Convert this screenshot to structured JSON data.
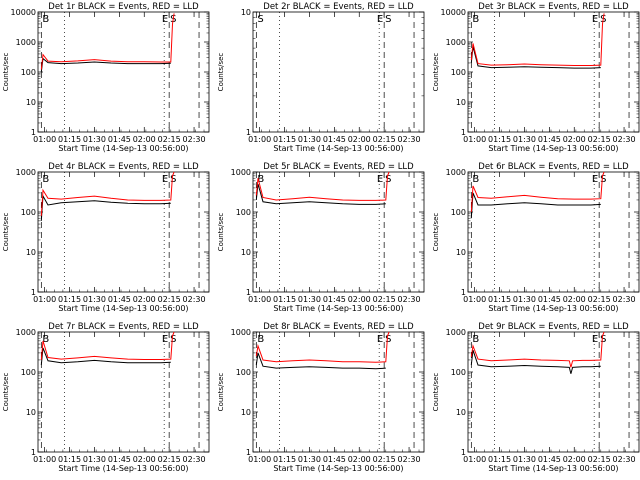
{
  "figure": {
    "x_title": "Start Time (14-Sep-13 00:56:00)",
    "y_title": "Counts/sec",
    "x_ticks": [
      "01:00",
      "01:15",
      "01:30",
      "01:45",
      "02:00",
      "02:15",
      "02:30"
    ],
    "colors": {
      "events": "#000000",
      "lld": "#ff0000",
      "axes": "#000000",
      "background": "#ffffff"
    }
  },
  "chart_data": [
    {
      "type": "line",
      "title": "Det 1r BLACK = Events, RED = LLD",
      "xlabel": "Start Time (14-Sep-13 00:56:00)",
      "ylabel": "Counts/sec",
      "ylog": true,
      "ylim": [
        1,
        10000
      ],
      "y_ticks": [
        "1",
        "10",
        "100",
        "1000",
        "10000"
      ],
      "xlim": [
        "00:56",
        "02:39"
      ],
      "x_ticks": [
        "01:00",
        "01:15",
        "01:30",
        "01:45",
        "02:00",
        "02:15",
        "02:30"
      ],
      "markers": [
        "B",
        "E",
        "S"
      ],
      "series": [
        {
          "name": "Events",
          "color": "#000000",
          "x": [
            "00:58",
            "00:59",
            "01:02",
            "01:10",
            "01:20",
            "01:30",
            "01:40",
            "01:50",
            "02:00",
            "02:10",
            "02:16"
          ],
          "values": [
            100,
            280,
            205,
            190,
            200,
            215,
            200,
            190,
            190,
            190,
            195
          ]
        },
        {
          "name": "LLD",
          "color": "#ff0000",
          "x": [
            "00:58",
            "00:59",
            "01:02",
            "01:10",
            "01:20",
            "01:30",
            "01:40",
            "01:50",
            "02:00",
            "02:10",
            "02:16",
            "02:17",
            "02:18"
          ],
          "values": [
            120,
            380,
            230,
            220,
            235,
            260,
            230,
            220,
            220,
            215,
            215,
            4000,
            9000
          ]
        }
      ]
    },
    {
      "type": "line",
      "title": "Det 2r BLACK = Events, RED = LLD",
      "xlabel": "Start Time (14-Sep-13 00:56:00)",
      "ylabel": "Counts/sec",
      "ylog": true,
      "ylim": [
        1,
        10
      ],
      "y_ticks": [
        "1",
        "10"
      ],
      "xlim": [
        "00:56",
        "02:39"
      ],
      "x_ticks": [
        "01:00",
        "01:15",
        "01:30",
        "01:45",
        "02:00",
        "02:15",
        "02:30"
      ],
      "markers": [
        "S",
        "E",
        "S"
      ],
      "series": []
    },
    {
      "type": "line",
      "title": "Det 3r BLACK = Events, RED = LLD",
      "xlabel": "Start Time (14-Sep-13 00:56:00)",
      "ylabel": "Counts/sec",
      "ylog": true,
      "ylim": [
        1,
        10000
      ],
      "y_ticks": [
        "1",
        "10",
        "100",
        "1000",
        "10000"
      ],
      "xlim": [
        "00:56",
        "02:39"
      ],
      "x_ticks": [
        "01:00",
        "01:15",
        "01:30",
        "01:45",
        "02:00",
        "02:15",
        "02:30"
      ],
      "markers": [
        "B",
        "E",
        "S"
      ],
      "series": [
        {
          "name": "Events",
          "color": "#000000",
          "x": [
            "00:58",
            "00:59",
            "01:02",
            "01:10",
            "01:20",
            "01:30",
            "01:40",
            "01:50",
            "02:00",
            "02:10",
            "02:16"
          ],
          "values": [
            200,
            700,
            160,
            140,
            145,
            150,
            145,
            140,
            135,
            135,
            140
          ]
        },
        {
          "name": "LLD",
          "color": "#ff0000",
          "x": [
            "00:58",
            "00:59",
            "01:02",
            "01:10",
            "01:20",
            "01:30",
            "01:40",
            "01:50",
            "02:00",
            "02:10",
            "02:16",
            "02:17",
            "02:18"
          ],
          "values": [
            250,
            900,
            190,
            170,
            175,
            185,
            175,
            170,
            165,
            165,
            170,
            4000,
            9000
          ]
        }
      ]
    },
    {
      "type": "line",
      "title": "Det 4r BLACK = Events, RED = LLD",
      "xlabel": "Start Time (14-Sep-13 00:56:00)",
      "ylabel": "Counts/sec",
      "ylog": true,
      "ylim": [
        1,
        1000
      ],
      "y_ticks": [
        "1",
        "10",
        "100",
        "1000"
      ],
      "xlim": [
        "00:56",
        "02:39"
      ],
      "x_ticks": [
        "01:00",
        "01:15",
        "01:30",
        "01:45",
        "02:00",
        "02:15",
        "02:30"
      ],
      "markers": [
        "B",
        "E",
        "S"
      ],
      "series": [
        {
          "name": "Events",
          "color": "#000000",
          "x": [
            "00:58",
            "00:59",
            "01:02",
            "01:10",
            "01:20",
            "01:30",
            "01:40",
            "01:50",
            "02:00",
            "02:10",
            "02:16"
          ],
          "values": [
            60,
            250,
            150,
            170,
            180,
            190,
            175,
            165,
            160,
            160,
            165
          ]
        },
        {
          "name": "LLD",
          "color": "#ff0000",
          "x": [
            "00:58",
            "00:59",
            "01:02",
            "01:10",
            "01:20",
            "01:30",
            "01:40",
            "01:50",
            "02:00",
            "02:10",
            "02:16",
            "02:17",
            "02:18"
          ],
          "values": [
            80,
            350,
            220,
            210,
            230,
            250,
            220,
            200,
            195,
            195,
            200,
            800,
            1000
          ]
        }
      ]
    },
    {
      "type": "line",
      "title": "Det 5r BLACK = Events, RED = LLD",
      "xlabel": "Start Time (14-Sep-13 00:56:00)",
      "ylabel": "Counts/sec",
      "ylog": true,
      "ylim": [
        1,
        1000
      ],
      "y_ticks": [
        "1",
        "10",
        "100",
        "1000"
      ],
      "xlim": [
        "00:56",
        "02:39"
      ],
      "x_ticks": [
        "01:00",
        "01:15",
        "01:30",
        "01:45",
        "02:00",
        "02:15",
        "02:30"
      ],
      "markers": [
        "B",
        "E",
        "S"
      ],
      "series": [
        {
          "name": "Events",
          "color": "#000000",
          "x": [
            "00:58",
            "00:59",
            "01:02",
            "01:10",
            "01:20",
            "01:30",
            "01:40",
            "01:50",
            "02:00",
            "02:10",
            "02:16"
          ],
          "values": [
            200,
            500,
            180,
            160,
            170,
            180,
            170,
            160,
            155,
            155,
            160
          ]
        },
        {
          "name": "LLD",
          "color": "#ff0000",
          "x": [
            "00:58",
            "00:59",
            "01:02",
            "01:10",
            "01:20",
            "01:30",
            "01:40",
            "01:50",
            "02:00",
            "02:10",
            "02:16",
            "02:17",
            "02:18"
          ],
          "values": [
            260,
            700,
            230,
            200,
            215,
            235,
            215,
            200,
            195,
            195,
            200,
            800,
            1000
          ]
        }
      ]
    },
    {
      "type": "line",
      "title": "Det 6r BLACK = Events, RED = LLD",
      "xlabel": "Start Time (14-Sep-13 00:56:00)",
      "ylabel": "Counts/sec",
      "ylog": true,
      "ylim": [
        1,
        1000
      ],
      "y_ticks": [
        "1",
        "10",
        "100",
        "1000"
      ],
      "xlim": [
        "00:56",
        "02:39"
      ],
      "x_ticks": [
        "01:00",
        "01:15",
        "01:30",
        "01:45",
        "02:00",
        "02:15",
        "02:30"
      ],
      "markers": [
        "B",
        "E",
        "S"
      ],
      "series": [
        {
          "name": "Events",
          "color": "#000000",
          "x": [
            "00:58",
            "00:59",
            "01:02",
            "01:10",
            "01:20",
            "01:30",
            "01:40",
            "01:50",
            "02:00",
            "02:10",
            "02:16"
          ],
          "values": [
            70,
            300,
            150,
            150,
            160,
            170,
            160,
            150,
            150,
            150,
            155
          ]
        },
        {
          "name": "LLD",
          "color": "#ff0000",
          "x": [
            "00:58",
            "00:59",
            "01:02",
            "01:10",
            "01:20",
            "01:30",
            "01:40",
            "01:50",
            "02:00",
            "02:10",
            "02:16",
            "02:17",
            "02:18"
          ],
          "values": [
            100,
            450,
            230,
            220,
            240,
            260,
            235,
            215,
            210,
            210,
            215,
            800,
            1000
          ]
        }
      ]
    },
    {
      "type": "line",
      "title": "Det 7r BLACK = Events, RED = LLD",
      "xlabel": "Start Time (14-Sep-13 00:56:00)",
      "ylabel": "Counts/sec",
      "ylog": true,
      "ylim": [
        1,
        1000
      ],
      "y_ticks": [
        "1",
        "10",
        "100",
        "1000"
      ],
      "xlim": [
        "00:56",
        "02:39"
      ],
      "x_ticks": [
        "01:00",
        "01:15",
        "01:30",
        "01:45",
        "02:00",
        "02:15",
        "02:30"
      ],
      "markers": [
        "B",
        "E",
        "S"
      ],
      "series": [
        {
          "name": "Events",
          "color": "#000000",
          "x": [
            "00:58",
            "00:59",
            "01:02",
            "01:10",
            "01:20",
            "01:30",
            "01:40",
            "01:50",
            "02:00",
            "02:10",
            "02:16"
          ],
          "values": [
            150,
            400,
            190,
            170,
            180,
            195,
            180,
            170,
            170,
            170,
            175
          ]
        },
        {
          "name": "LLD",
          "color": "#ff0000",
          "x": [
            "00:58",
            "00:59",
            "01:02",
            "01:10",
            "01:20",
            "01:30",
            "01:40",
            "01:50",
            "02:00",
            "02:10",
            "02:16",
            "02:17",
            "02:18"
          ],
          "values": [
            200,
            600,
            230,
            210,
            225,
            245,
            225,
            210,
            205,
            205,
            210,
            800,
            1000
          ]
        }
      ]
    },
    {
      "type": "line",
      "title": "Det 8r BLACK = Events, RED = LLD",
      "xlabel": "Start Time (14-Sep-13 00:56:00)",
      "ylabel": "Counts/sec",
      "ylog": true,
      "ylim": [
        1,
        1000
      ],
      "y_ticks": [
        "1",
        "10",
        "100",
        "1000"
      ],
      "xlim": [
        "00:56",
        "02:39"
      ],
      "x_ticks": [
        "01:00",
        "01:15",
        "01:30",
        "01:45",
        "02:00",
        "02:15",
        "02:30"
      ],
      "markers": [
        "B",
        "E",
        "S"
      ],
      "series": [
        {
          "name": "Events",
          "color": "#000000",
          "x": [
            "00:58",
            "00:59",
            "01:02",
            "01:10",
            "01:20",
            "01:30",
            "01:40",
            "01:50",
            "02:00",
            "02:10",
            "02:16"
          ],
          "values": [
            150,
            300,
            140,
            125,
            130,
            135,
            130,
            125,
            125,
            120,
            125
          ]
        },
        {
          "name": "LLD",
          "color": "#ff0000",
          "x": [
            "00:58",
            "00:59",
            "01:02",
            "01:10",
            "01:20",
            "01:30",
            "01:40",
            "01:50",
            "02:00",
            "02:10",
            "02:16",
            "02:17",
            "02:18"
          ],
          "values": [
            250,
            450,
            200,
            180,
            190,
            200,
            190,
            180,
            180,
            175,
            180,
            800,
            1000
          ]
        }
      ]
    },
    {
      "type": "line",
      "title": "Det 9r BLACK = Events, RED = LLD",
      "xlabel": "Start Time (14-Sep-13 00:56:00)",
      "ylabel": "Counts/sec",
      "ylog": true,
      "ylim": [
        1,
        1000
      ],
      "y_ticks": [
        "1",
        "10",
        "100",
        "1000"
      ],
      "xlim": [
        "00:56",
        "02:39"
      ],
      "x_ticks": [
        "01:00",
        "01:15",
        "01:30",
        "01:45",
        "02:00",
        "02:15",
        "02:30"
      ],
      "markers": [
        "B",
        "E",
        "S"
      ],
      "series": [
        {
          "name": "Events",
          "color": "#000000",
          "x": [
            "00:58",
            "00:59",
            "01:02",
            "01:10",
            "01:20",
            "01:30",
            "01:40",
            "01:50",
            "01:57",
            "01:58",
            "01:59",
            "02:05",
            "02:10",
            "02:16"
          ],
          "values": [
            150,
            350,
            150,
            135,
            140,
            145,
            140,
            135,
            130,
            90,
            130,
            135,
            135,
            140
          ]
        },
        {
          "name": "LLD",
          "color": "#ff0000",
          "x": [
            "00:58",
            "00:59",
            "01:02",
            "01:10",
            "01:20",
            "01:30",
            "01:40",
            "01:50",
            "01:57",
            "01:58",
            "01:59",
            "02:05",
            "02:10",
            "02:16",
            "02:17",
            "02:18"
          ],
          "values": [
            240,
            450,
            210,
            190,
            200,
            210,
            200,
            195,
            190,
            130,
            190,
            195,
            195,
            200,
            800,
            1000
          ]
        }
      ]
    }
  ]
}
